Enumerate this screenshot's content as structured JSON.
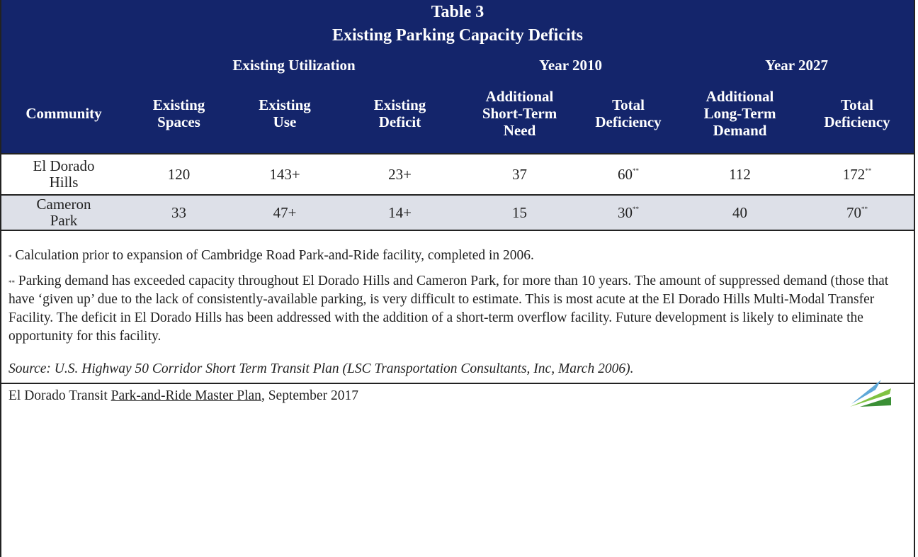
{
  "table": {
    "title": "Table 3",
    "subtitle": "Existing Parking Capacity Deficits",
    "groups": [
      "Existing Utilization",
      "Year 2010",
      "Year 2027"
    ],
    "columns": [
      [
        "Community"
      ],
      [
        "Existing",
        "Spaces"
      ],
      [
        "Existing",
        "Use"
      ],
      [
        "Existing",
        "Deficit"
      ],
      [
        "Additional",
        "Short-Term",
        "Need"
      ],
      [
        "Total",
        "Deficiency"
      ],
      [
        "Additional",
        "Long-Term",
        "Demand"
      ],
      [
        "Total",
        "Deficiency"
      ]
    ],
    "rows": [
      [
        {
          "text": "El Dorado Hills"
        },
        {
          "text": "120"
        },
        {
          "text": "143+"
        },
        {
          "text": "23+"
        },
        {
          "text": "37"
        },
        {
          "text": "60",
          "note": "**"
        },
        {
          "text": "112"
        },
        {
          "text": "172",
          "note": "**"
        }
      ],
      [
        {
          "text": "Cameron Park"
        },
        {
          "text": "33"
        },
        {
          "text": "47+"
        },
        {
          "text": "14+"
        },
        {
          "text": "15"
        },
        {
          "text": "30",
          "note": "**"
        },
        {
          "text": "40"
        },
        {
          "text": "70",
          "note": "**"
        }
      ]
    ]
  },
  "notes": [
    {
      "marker": "*",
      "text": "Calculation prior to expansion of Cambridge Road Park-and-Ride facility, completed in 2006."
    },
    {
      "marker": "**",
      "text": "Parking demand has exceeded capacity throughout El Dorado Hills and Cameron Park, for more than 10 years. The amount of suppressed demand (those that have ‘given up’ due to the lack of consistently-available parking, is very difficult to estimate. This is most acute at the El Dorado Hills Multi-Modal Transfer Facility. The deficit in El Dorado Hills has been addressed with the addition of a short-term overflow facility. Future development is likely to eliminate the opportunity for this facility."
    }
  ],
  "source": "Source: U.S. Highway 50 Corridor Short Term Transit Plan (LSC Transportation Consultants, Inc, March 2006).",
  "footer": {
    "prefix": "El Dorado Transit",
    "link": "Park-and-Ride Master Plan",
    "suffix": ", September 2017"
  }
}
